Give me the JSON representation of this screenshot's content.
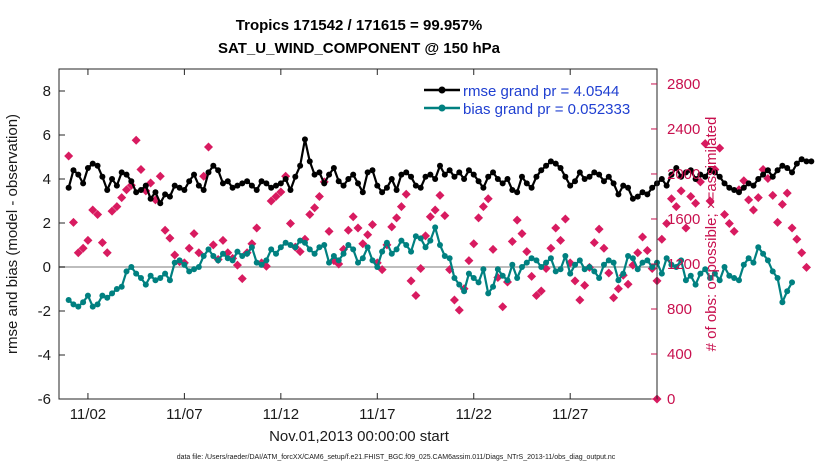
{
  "chart_data": {
    "type": "line",
    "title_line1": "Tropics 171542 / 171615 = 99.957%",
    "title_line2": "SAT_U_WIND_COMPONENT @ 150 hPa",
    "xlabel": "Nov.01,2013 00:00:00 start",
    "ylabel_left": "rmse and bias (model - observation)",
    "ylabel_right": "# of obs: o=possible; ×=assimilated",
    "xlim": [
      0.5,
      31.5
    ],
    "ylim_left": [
      -6,
      9
    ],
    "ylim_right": [
      0,
      2933
    ],
    "x_ticks": [
      {
        "day": 2,
        "label": "11/02"
      },
      {
        "day": 7,
        "label": "11/07"
      },
      {
        "day": 12,
        "label": "11/12"
      },
      {
        "day": 17,
        "label": "11/17"
      },
      {
        "day": 22,
        "label": "11/22"
      },
      {
        "day": 27,
        "label": "11/27"
      }
    ],
    "y_ticks_left": [
      -6,
      -4,
      -2,
      0,
      2,
      4,
      6,
      8
    ],
    "y_ticks_right": [
      0,
      400,
      800,
      1200,
      1600,
      2000,
      2400,
      2800
    ],
    "footer": "data file: /Users/raeder/DAI/ATM_forcXX/CAM6_setup/f.e21.FHIST_BGC.f09_025.CAM6assim.011/Diags_NTrS_2013-11/obs_diag_output.nc",
    "colors": {
      "rmse": "#000000",
      "bias": "#008080",
      "obs": "#d81b60",
      "right_axis": "#c8104e",
      "legend_text": "#1f3fd1",
      "zero_line": "#bdbdbd"
    },
    "series": [
      {
        "name": "rmse",
        "legend": "rmse grand pr = 4.0544",
        "x_start": 1.0,
        "x_step": 0.25,
        "values": [
          3.6,
          4.4,
          4.2,
          3.8,
          4.5,
          4.7,
          4.6,
          4.1,
          3.5,
          4.0,
          3.7,
          4.3,
          4.2,
          3.9,
          3.4,
          3.5,
          3.7,
          3.1,
          3.4,
          2.9,
          3.3,
          3.2,
          3.7,
          3.6,
          3.5,
          3.9,
          4.2,
          3.7,
          3.5,
          4.3,
          4.6,
          4.4,
          3.8,
          3.9,
          3.6,
          3.7,
          3.8,
          3.9,
          3.7,
          3.5,
          3.9,
          3.8,
          3.6,
          3.7,
          3.8,
          4.0,
          3.5,
          4.1,
          4.6,
          5.8,
          4.8,
          4.2,
          4.3,
          3.8,
          4.2,
          4.5,
          3.9,
          3.7,
          4.0,
          4.2,
          3.8,
          3.4,
          4.3,
          4.4,
          3.7,
          3.4,
          3.6,
          4.0,
          3.5,
          4.2,
          4.3,
          4.1,
          3.7,
          3.6,
          4.1,
          4.2,
          4.0,
          4.6,
          4.2,
          4.4,
          4.1,
          4.3,
          4.0,
          4.4,
          4.2,
          3.9,
          3.6,
          4.1,
          4.3,
          4.0,
          3.8,
          4.0,
          3.5,
          3.4,
          4.1,
          3.8,
          3.6,
          4.1,
          4.4,
          4.6,
          4.8,
          4.7,
          4.5,
          4.1,
          3.7,
          3.9,
          4.3,
          4.0,
          4.1,
          4.3,
          4.2,
          3.9,
          4.1,
          3.8,
          3.3,
          3.7,
          3.6,
          3.1,
          3.2,
          3.4,
          3.3,
          3.6,
          3.8,
          4.0,
          3.7,
          4.2,
          4.5,
          4.1,
          4.3,
          4.4,
          4.0,
          4.2,
          4.1,
          4.4,
          4.3,
          4.1,
          3.8,
          3.6,
          3.5,
          3.4,
          3.6,
          3.8,
          3.7,
          4.0,
          4.2,
          4.4,
          4.1,
          4.4,
          4.6,
          4.5,
          4.3,
          4.7,
          4.9,
          4.8,
          4.8
        ]
      },
      {
        "name": "bias",
        "legend": "bias grand pr = 0.052333",
        "x_start": 1.0,
        "x_step": 0.25,
        "values": [
          -1.5,
          -1.7,
          -1.8,
          -1.6,
          -1.3,
          -1.8,
          -1.7,
          -1.3,
          -1.4,
          -1.2,
          -1.0,
          -0.9,
          -0.2,
          0.0,
          -0.3,
          -0.5,
          -0.8,
          -0.4,
          -0.6,
          -0.5,
          -0.3,
          -0.6,
          0.2,
          0.3,
          0.1,
          -0.2,
          -0.1,
          0.0,
          0.5,
          0.8,
          0.5,
          0.3,
          0.6,
          0.4,
          0.3,
          0.7,
          0.5,
          0.6,
          0.9,
          0.2,
          0.1,
          0.3,
          0.8,
          0.6,
          0.9,
          1.1,
          1.0,
          0.9,
          1.2,
          1.1,
          0.8,
          0.6,
          0.9,
          1.0,
          0.2,
          0.5,
          0.3,
          0.6,
          1.0,
          0.8,
          0.2,
          0.4,
          0.9,
          0.3,
          0.0,
          0.7,
          1.1,
          0.6,
          0.8,
          1.2,
          1.0,
          0.7,
          1.4,
          1.3,
          0.9,
          1.2,
          1.8,
          1.0,
          0.5,
          0.4,
          -0.5,
          -0.8,
          -1.1,
          -0.3,
          -0.5,
          -0.7,
          -0.1,
          -1.2,
          -0.9,
          -0.1,
          -0.4,
          -0.6,
          0.1,
          -0.5,
          0.0,
          0.2,
          0.4,
          0.3,
          0.0,
          0.2,
          0.4,
          -0.2,
          -0.1,
          0.5,
          -0.3,
          0.1,
          0.3,
          -0.1,
          0.0,
          -0.2,
          -0.5,
          0.1,
          0.3,
          0.2,
          -0.6,
          -0.3,
          0.5,
          0.4,
          -0.1,
          0.2,
          0.3,
          0.0,
          0.2,
          -0.3,
          0.4,
          0.1,
          0.0,
          0.3,
          -0.6,
          -0.4,
          -0.8,
          -0.3,
          -0.1,
          -0.5,
          -0.3,
          -0.6,
          0.0,
          -0.4,
          -0.5,
          -0.6,
          0.1,
          0.4,
          0.2,
          0.9,
          0.6,
          0.3,
          -0.2,
          -0.5,
          -1.6,
          -1.1,
          -0.7
        ]
      },
      {
        "name": "obs_assimilated",
        "axis": "right",
        "x_start": 1.0,
        "x_step": 0.25,
        "values": [
          2160,
          1570,
          1300,
          1340,
          1410,
          1680,
          1640,
          1390,
          1300,
          1670,
          1710,
          1790,
          1860,
          1900,
          2300,
          2040,
          1850,
          1920,
          1770,
          1980,
          1500,
          1430,
          1280,
          1220,
          1210,
          1340,
          1470,
          1300,
          1980,
          2240,
          1370,
          1240,
          1410,
          1300,
          1250,
          1190,
          1070,
          1300,
          1380,
          1520,
          1210,
          1180,
          1760,
          1800,
          1840,
          1980,
          1560,
          1350,
          1310,
          1420,
          1640,
          1700,
          1800,
          1930,
          1490,
          1230,
          1200,
          1330,
          1500,
          1620,
          1520,
          1380,
          1460,
          1550,
          1210,
          1150,
          1370,
          1530,
          1610,
          1710,
          1820,
          1050,
          920,
          1160,
          1450,
          1620,
          1680,
          1810,
          1630,
          1150,
          880,
          790,
          980,
          1230,
          1380,
          1610,
          1710,
          1780,
          1330,
          1080,
          820,
          1040,
          1400,
          1590,
          1470,
          1310,
          1090,
          920,
          960,
          1160,
          1340,
          1520,
          1410,
          1600,
          1210,
          1050,
          880,
          1010,
          1170,
          1390,
          1510,
          1340,
          1120,
          900,
          980,
          1100,
          1020,
          1190,
          1300,
          1440,
          1320,
          1160,
          1050,
          1420,
          1560,
          1780,
          1710,
          1850,
          1520,
          1800,
          1740,
          1930,
          2270,
          1760,
          2040,
          2230,
          1640,
          1560,
          1490,
          1860,
          1940,
          1770,
          1680,
          1790,
          2040,
          1960,
          1810,
          1570,
          1730,
          1830,
          1520,
          1420,
          1300,
          1170
        ]
      }
    ]
  }
}
